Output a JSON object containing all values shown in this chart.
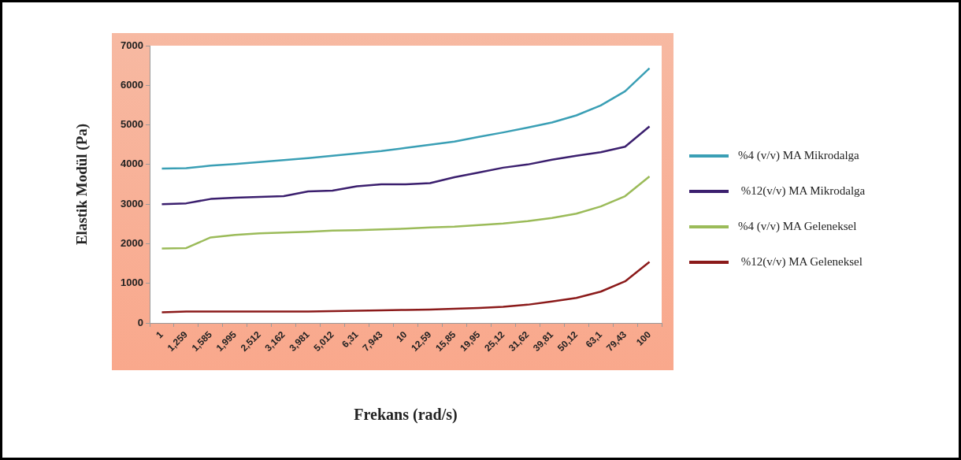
{
  "chart_data": {
    "type": "line",
    "xlabel": "Frekans (rad/s)",
    "ylabel": "Elastik Modül (Pa)",
    "categories": [
      "1",
      "1,259",
      "1,585",
      "1,995",
      "2,512",
      "3,162",
      "3,981",
      "5,012",
      "6,31",
      "7,943",
      "10",
      "12,59",
      "15,85",
      "19,95",
      "25,12",
      "31,62",
      "39,81",
      "50,12",
      "63,1",
      "79,43",
      "100"
    ],
    "series": [
      {
        "name": "%4 (v/v) MA Mikrodalga",
        "color": "#3a9fb5",
        "values": [
          3900,
          3910,
          3970,
          4010,
          4060,
          4110,
          4160,
          4220,
          4280,
          4340,
          4420,
          4500,
          4580,
          4700,
          4810,
          4930,
          5060,
          5240,
          5490,
          5850,
          6430
        ]
      },
      {
        "name": " %12(v/v) MA Mikrodalga",
        "color": "#3b1f6e",
        "values": [
          3000,
          3020,
          3130,
          3160,
          3180,
          3200,
          3320,
          3340,
          3450,
          3500,
          3500,
          3530,
          3680,
          3800,
          3920,
          4000,
          4120,
          4220,
          4310,
          4450,
          4960
        ]
      },
      {
        "name": "%4 (v/v) MA Geleneksel",
        "color": "#9bbb59",
        "values": [
          1880,
          1890,
          2160,
          2220,
          2260,
          2280,
          2300,
          2330,
          2340,
          2360,
          2380,
          2410,
          2430,
          2470,
          2510,
          2570,
          2650,
          2760,
          2940,
          3200,
          3700
        ]
      },
      {
        "name": " %12(v/v) MA Geleneksel",
        "color": "#8b1a1a",
        "values": [
          270,
          290,
          290,
          290,
          290,
          290,
          290,
          300,
          310,
          320,
          330,
          340,
          360,
          380,
          410,
          460,
          540,
          630,
          790,
          1050,
          1540
        ]
      }
    ],
    "ylim": [
      0,
      7000
    ],
    "yticks": [
      0,
      1000,
      2000,
      3000,
      4000,
      5000,
      6000,
      7000
    ],
    "legend": "right",
    "marker": "none",
    "line_style": "solid"
  }
}
